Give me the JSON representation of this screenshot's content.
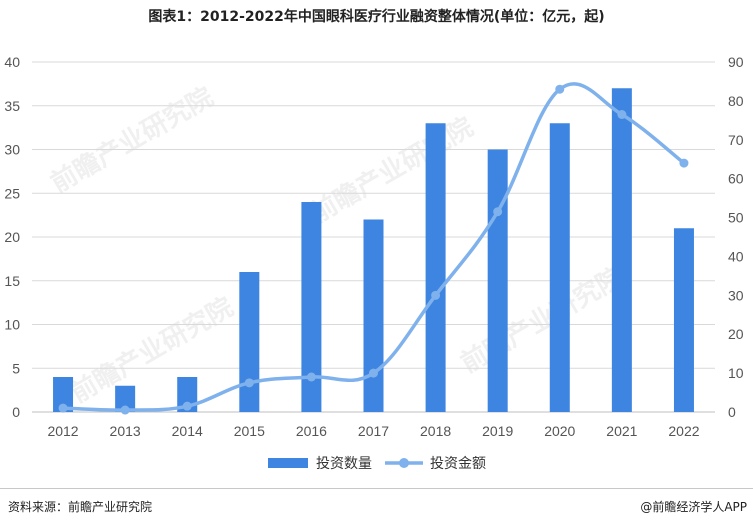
{
  "title": "图表1：2012-2022年中国眼科医疗行业融资整体情况(单位：亿元，起)",
  "footer": {
    "source": "资料来源：前瞻产业研究院",
    "credit": "@前瞻经济学人APP"
  },
  "watermark": "前瞻产业研究院",
  "colors": {
    "bar": "#3d85e0",
    "line": "#7fb1ec",
    "grid": "#d9d9d9",
    "axis": "#bfbfbf"
  },
  "chart_data": {
    "type": "bar",
    "title": "图表1：2012-2022年中国眼科医疗行业融资整体情况(单位：亿元，起)",
    "categories": [
      "2012",
      "2013",
      "2014",
      "2015",
      "2016",
      "2017",
      "2018",
      "2019",
      "2020",
      "2021",
      "2022"
    ],
    "series": [
      {
        "name": "投资数量",
        "type": "bar",
        "axis": "left",
        "values": [
          4,
          3,
          4,
          16,
          24,
          22,
          33,
          30,
          33,
          37,
          21
        ]
      },
      {
        "name": "投资金额",
        "type": "line",
        "axis": "right",
        "values": [
          1,
          0.5,
          1.5,
          7.5,
          9,
          10,
          30,
          51.5,
          83,
          76.5,
          64
        ]
      }
    ],
    "y_left": {
      "min": 0,
      "max": 40,
      "step": 5
    },
    "y_right": {
      "min": 0,
      "max": 90,
      "step": 10
    },
    "grid": true,
    "legend_position": "bottom"
  }
}
